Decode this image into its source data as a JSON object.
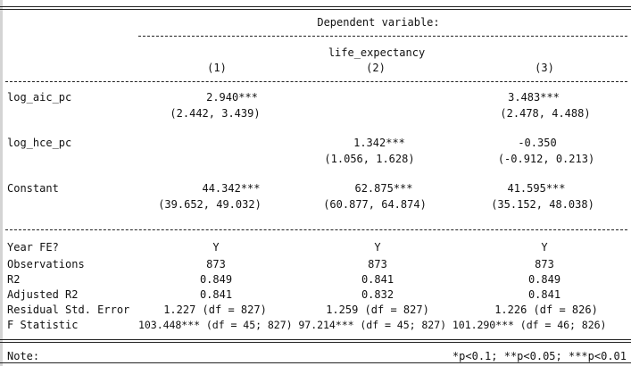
{
  "header": {
    "dep_var_label": "Dependent variable:",
    "dep_var_name": "life_expectancy",
    "columns": [
      "(1)",
      "(2)",
      "(3)"
    ]
  },
  "rows": {
    "log_aic_pc": {
      "label": "log_aic_pc",
      "coef": [
        "2.940***",
        "",
        "3.483***"
      ],
      "ci": [
        "(2.442, 3.439)",
        "",
        "(2.478, 4.488)"
      ]
    },
    "log_hce_pc": {
      "label": "log_hce_pc",
      "coef": [
        "",
        "1.342***",
        "-0.350"
      ],
      "ci": [
        "",
        "(1.056, 1.628)",
        "(-0.912, 0.213)"
      ]
    },
    "constant": {
      "label": "Constant",
      "coef": [
        "44.342***",
        "62.875***",
        "41.595***"
      ],
      "ci": [
        "(39.652, 49.032)",
        "(60.877, 64.874)",
        "(35.152, 48.038)"
      ]
    }
  },
  "stats": {
    "year_fe": {
      "label": "Year FE?",
      "values": [
        "Y",
        "Y",
        "Y"
      ]
    },
    "observations": {
      "label": "Observations",
      "values": [
        "873",
        "873",
        "873"
      ]
    },
    "r2": {
      "label": "R2",
      "values": [
        "0.849",
        "0.841",
        "0.849"
      ]
    },
    "adj_r2": {
      "label": "Adjusted R2",
      "values": [
        "0.841",
        "0.832",
        "0.841"
      ]
    },
    "rse": {
      "label": "Residual Std. Error",
      "values": [
        "1.227 (df = 827)",
        "1.259 (df = 827)",
        "1.226 (df = 826)"
      ]
    },
    "f_stat": {
      "label": "F Statistic",
      "text": "103.448*** (df = 45; 827) 97.214*** (df = 45; 827) 101.290*** (df = 46; 826)"
    }
  },
  "note": {
    "label": "Note:",
    "text": "*p<0.1; **p<0.05; ***p<0.01"
  }
}
